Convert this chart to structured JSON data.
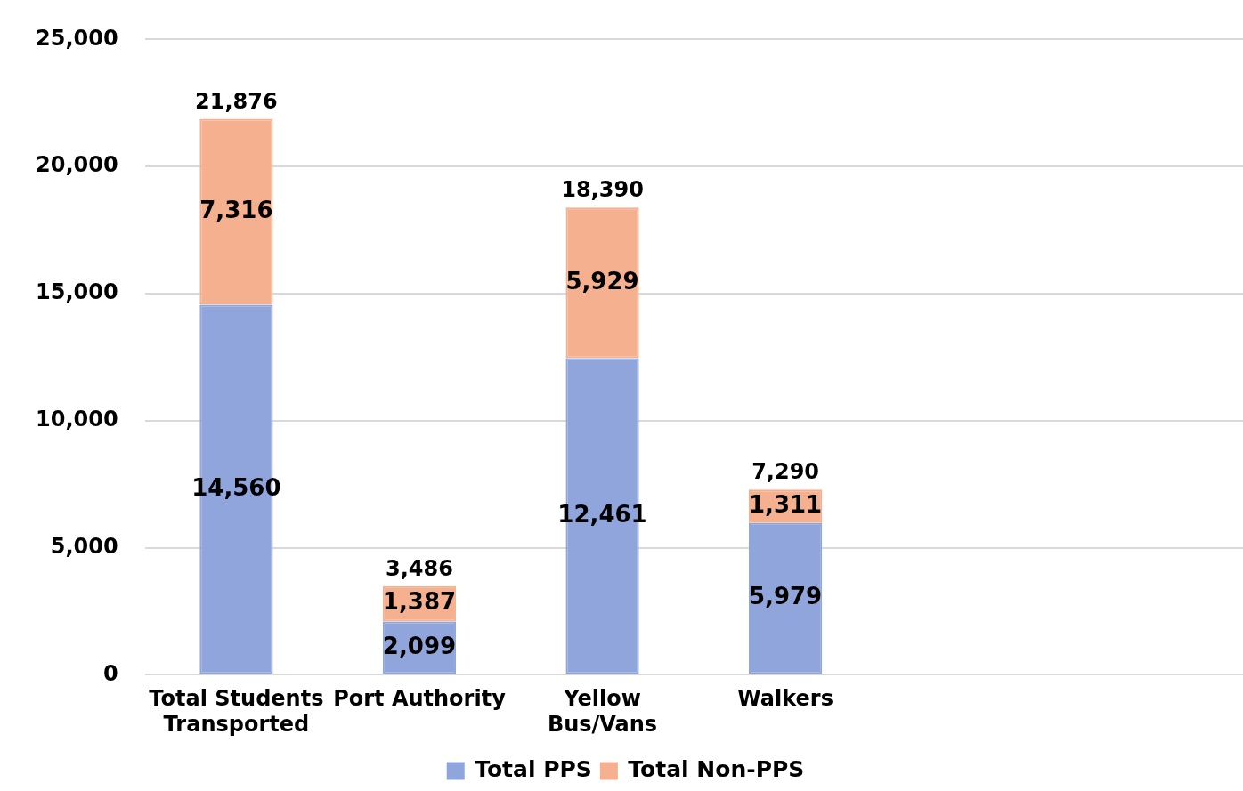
{
  "chart_data": {
    "type": "bar",
    "stacked": true,
    "categories": [
      "Total Students Transported",
      "Port Authority",
      "Yellow Bus/Vans",
      "Walkers",
      null,
      null
    ],
    "series": [
      {
        "name": "Total PPS",
        "color": "#8fa5dc",
        "values": [
          14560,
          2099,
          12461,
          5979,
          null,
          null
        ],
        "value_labels": [
          "14,560",
          "2,099",
          "12,461",
          "5,979",
          null,
          null
        ]
      },
      {
        "name": "Total Non-PPS",
        "color": "#f5b08f",
        "values": [
          7316,
          1387,
          5929,
          1311,
          null,
          null
        ],
        "value_labels": [
          "7,316",
          "1,387",
          "5,929",
          "1,311",
          null,
          null
        ]
      }
    ],
    "totals": [
      "21,876",
      "3,486",
      "18,390",
      "7,290",
      null,
      null
    ],
    "ylim": [
      0,
      25000
    ],
    "yticks": [
      0,
      {
        "value": 5000,
        "label": "5,000"
      },
      {
        "value": 10000,
        "label": "10,000"
      },
      {
        "value": 15000,
        "label": "15,000"
      },
      {
        "value": 20000,
        "label": "20,000"
      },
      {
        "value": 25000,
        "label": "25,000"
      }
    ],
    "grid": "y",
    "legend": "bottom"
  }
}
